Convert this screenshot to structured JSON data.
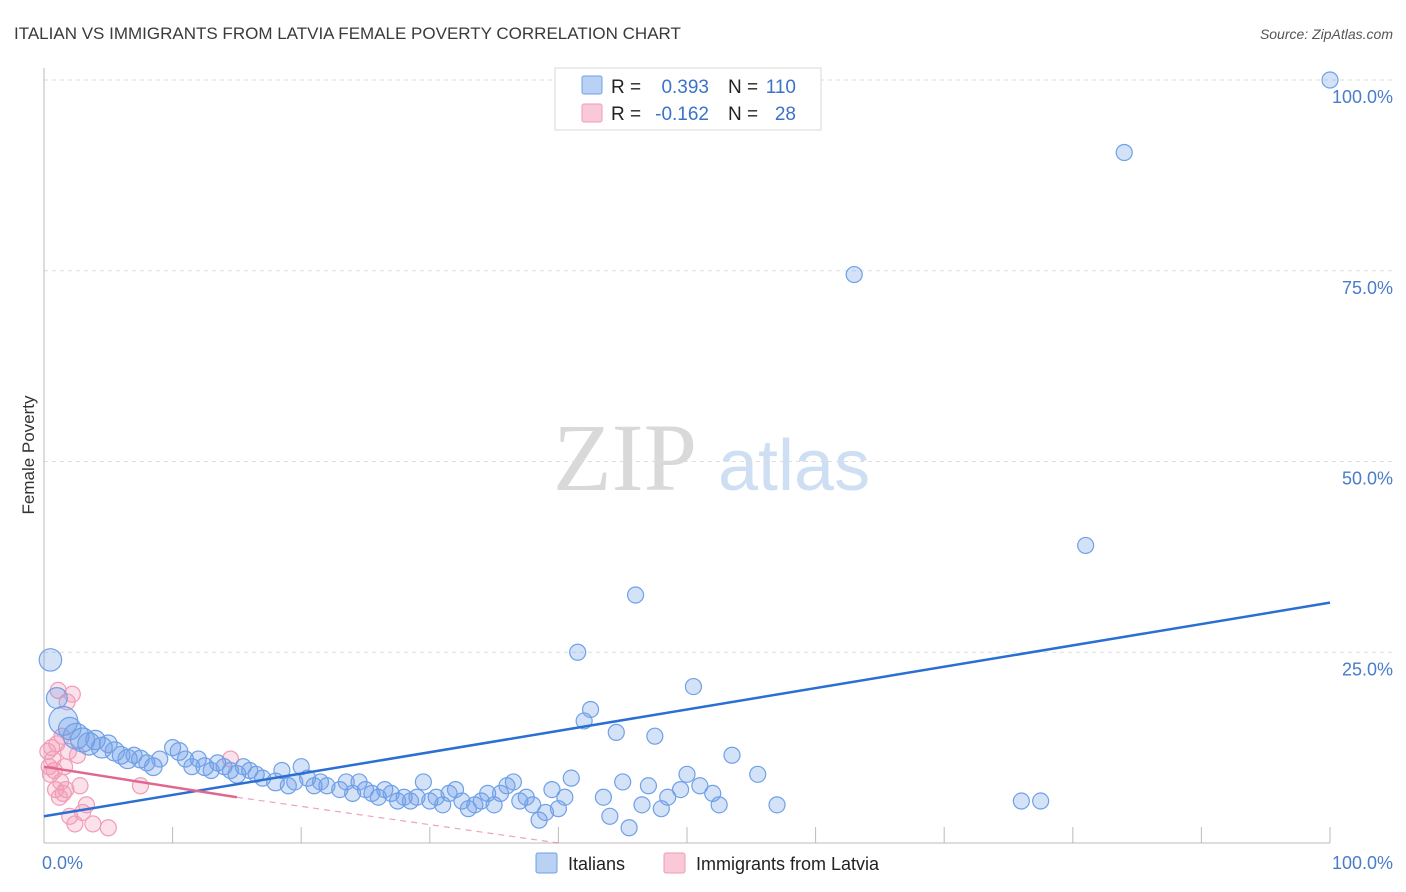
{
  "chart_data": {
    "type": "scatter",
    "title": "ITALIAN VS IMMIGRANTS FROM LATVIA FEMALE POVERTY CORRELATION CHART",
    "source": "Source: ZipAtlas.com",
    "ylabel": "Female Poverty",
    "xlim": [
      0,
      100
    ],
    "ylim": [
      0,
      100
    ],
    "x_tick_labels": [
      "0.0%",
      "100.0%"
    ],
    "y_tick_labels": [
      "100.0%",
      "75.0%",
      "50.0%",
      "25.0%"
    ],
    "y_tick_values": [
      100,
      75,
      50,
      25
    ],
    "watermark": {
      "zip": "ZIP",
      "atlas": "atlas"
    },
    "colors": {
      "italians": "#6fa0e8",
      "italians_line": "#2a6fd1",
      "latvia": "#f19bb7",
      "latvia_line": "#e0678f",
      "grid": "#dddddd",
      "axis": "#bbbbbb",
      "tick_text": "#4a7cc9"
    },
    "stats": [
      {
        "r_label": "R =",
        "r_value": "0.393",
        "n_label": "N =",
        "n_value": "110"
      },
      {
        "r_label": "R =",
        "r_value": "-0.162",
        "n_label": "N =",
        "n_value": "28"
      }
    ],
    "series": [
      {
        "name": "Italians",
        "trend": {
          "x0": 0,
          "y0": 3.5,
          "x1": 100,
          "y1": 31.5
        },
        "points": [
          [
            0.5,
            24,
            1.4
          ],
          [
            1,
            19,
            1.3
          ],
          [
            1.5,
            16,
            1.8
          ],
          [
            2,
            15,
            1.4
          ],
          [
            2.5,
            14,
            1.6
          ],
          [
            3,
            13.5,
            1.5
          ],
          [
            3.5,
            13,
            1.4
          ],
          [
            4,
            13.5,
            1.2
          ],
          [
            4.5,
            12.5,
            1.3
          ],
          [
            5,
            13,
            1.1
          ],
          [
            5.5,
            12,
            1.2
          ],
          [
            6,
            11.5,
            1.1
          ],
          [
            6.5,
            11,
            1.2
          ],
          [
            7,
            11.5,
            1.0
          ],
          [
            7.5,
            11,
            1.1
          ],
          [
            8,
            10.5,
            1.0
          ],
          [
            8.5,
            10,
            1.1
          ],
          [
            9,
            11,
            1.0
          ],
          [
            10,
            12.5,
            1.0
          ],
          [
            10.5,
            12,
            1.1
          ],
          [
            11,
            11,
            1.0
          ],
          [
            11.5,
            10,
            1.0
          ],
          [
            12,
            11,
            1.0
          ],
          [
            12.5,
            10,
            1.1
          ],
          [
            13,
            9.5,
            1.0
          ],
          [
            13.5,
            10.5,
            1.0
          ],
          [
            14,
            10,
            1.0
          ],
          [
            14.5,
            9.5,
            1.0
          ],
          [
            15,
            9,
            1.1
          ],
          [
            15.5,
            10,
            1.0
          ],
          [
            16,
            9.5,
            1.0
          ],
          [
            16.5,
            9,
            1.0
          ],
          [
            17,
            8.5,
            1.0
          ],
          [
            18,
            8,
            1.1
          ],
          [
            18.5,
            9.5,
            1.0
          ],
          [
            19,
            7.5,
            1.0
          ],
          [
            19.5,
            8,
            1.0
          ],
          [
            20,
            10,
            1.0
          ],
          [
            20.5,
            8.5,
            1.0
          ],
          [
            21,
            7.5,
            1.0
          ],
          [
            21.5,
            8,
            1.0
          ],
          [
            22,
            7.5,
            1.0
          ],
          [
            23,
            7,
            1.0
          ],
          [
            23.5,
            8,
            1.0
          ],
          [
            24,
            6.5,
            1.0
          ],
          [
            24.5,
            8,
            1.0
          ],
          [
            25,
            7,
            1.0
          ],
          [
            25.5,
            6.5,
            1.0
          ],
          [
            26,
            6,
            1.0
          ],
          [
            26.5,
            7,
            1.0
          ],
          [
            27,
            6.5,
            1.0
          ],
          [
            27.5,
            5.5,
            1.0
          ],
          [
            28,
            6,
            1.0
          ],
          [
            28.5,
            5.5,
            1.0
          ],
          [
            29,
            6,
            1.0
          ],
          [
            29.5,
            8,
            1.0
          ],
          [
            30,
            5.5,
            1.0
          ],
          [
            30.5,
            6,
            1.0
          ],
          [
            31,
            5,
            1.0
          ],
          [
            31.5,
            6.5,
            1.0
          ],
          [
            32,
            7,
            1.0
          ],
          [
            32.5,
            5.5,
            1.0
          ],
          [
            33,
            4.5,
            1.0
          ],
          [
            33.5,
            5,
            1.0
          ],
          [
            34,
            5.5,
            1.0
          ],
          [
            34.5,
            6.5,
            1.0
          ],
          [
            35,
            5,
            1.0
          ],
          [
            35.5,
            6.5,
            1.0
          ],
          [
            36,
            7.5,
            1.0
          ],
          [
            36.5,
            8,
            1.0
          ],
          [
            37,
            5.5,
            1.0
          ],
          [
            37.5,
            6,
            1.0
          ],
          [
            38,
            5,
            1.0
          ],
          [
            38.5,
            3,
            1.0
          ],
          [
            39,
            4,
            1.0
          ],
          [
            39.5,
            7,
            1.0
          ],
          [
            40,
            4.5,
            1.0
          ],
          [
            40.5,
            6,
            1.0
          ],
          [
            41,
            8.5,
            1.0
          ],
          [
            41.5,
            25,
            1.0
          ],
          [
            42,
            16,
            1.0
          ],
          [
            42.5,
            17.5,
            1.0
          ],
          [
            43.5,
            6,
            1.0
          ],
          [
            44,
            3.5,
            1.0
          ],
          [
            44.5,
            14.5,
            1.0
          ],
          [
            45,
            8,
            1.0
          ],
          [
            45.5,
            2,
            1.0
          ],
          [
            46,
            32.5,
            1.0
          ],
          [
            46.5,
            5,
            1.0
          ],
          [
            47,
            7.5,
            1.0
          ],
          [
            47.5,
            14,
            1.0
          ],
          [
            48,
            4.5,
            1.0
          ],
          [
            48.5,
            6,
            1.0
          ],
          [
            49.5,
            7,
            1.0
          ],
          [
            50,
            9,
            1.0
          ],
          [
            50.5,
            20.5,
            1.0
          ],
          [
            51,
            7.5,
            1.0
          ],
          [
            52,
            6.5,
            1.0
          ],
          [
            52.5,
            5,
            1.0
          ],
          [
            53.5,
            11.5,
            1.0
          ],
          [
            55.5,
            9,
            1.0
          ],
          [
            57,
            5,
            1.0
          ],
          [
            63,
            74.5,
            1.0
          ],
          [
            76,
            5.5,
            1.0
          ],
          [
            77.5,
            5.5,
            1.0
          ],
          [
            81,
            39,
            1.0
          ],
          [
            84,
            90.5,
            1.0
          ],
          [
            100,
            100,
            1.0
          ]
        ]
      },
      {
        "name": "Immigrants from Latvia",
        "trend": {
          "x0": 0,
          "y0": 10,
          "x1": 15,
          "y1": 6,
          "dash_x1": 40,
          "dash_y1": 0
        },
        "points": [
          [
            0.3,
            12,
            1.0
          ],
          [
            0.4,
            10,
            1.0
          ],
          [
            0.5,
            9,
            1.0
          ],
          [
            0.6,
            12.5,
            1.0
          ],
          [
            0.7,
            11,
            1.0
          ],
          [
            0.8,
            9.5,
            1.0
          ],
          [
            0.9,
            7,
            1.0
          ],
          [
            1.0,
            13,
            1.0
          ],
          [
            1.1,
            20,
            1.0
          ],
          [
            1.2,
            6,
            1.0
          ],
          [
            1.3,
            8,
            1.0
          ],
          [
            1.4,
            14,
            1.0
          ],
          [
            1.5,
            6.5,
            1.0
          ],
          [
            1.6,
            10,
            1.0
          ],
          [
            1.7,
            7,
            1.0
          ],
          [
            1.8,
            18.5,
            1.0
          ],
          [
            1.9,
            12,
            1.0
          ],
          [
            2.0,
            3.5,
            1.0
          ],
          [
            2.2,
            19.5,
            1.0
          ],
          [
            2.4,
            2.5,
            1.0
          ],
          [
            2.6,
            11.5,
            1.0
          ],
          [
            2.8,
            7.5,
            1.0
          ],
          [
            3.0,
            4,
            1.0
          ],
          [
            3.3,
            5,
            1.0
          ],
          [
            3.8,
            2.5,
            1.0
          ],
          [
            5.0,
            2,
            1.0
          ],
          [
            7.5,
            7.5,
            1.0
          ],
          [
            14.5,
            11,
            1.0
          ]
        ]
      }
    ],
    "legend": [
      "Italians",
      "Immigrants from Latvia"
    ]
  }
}
